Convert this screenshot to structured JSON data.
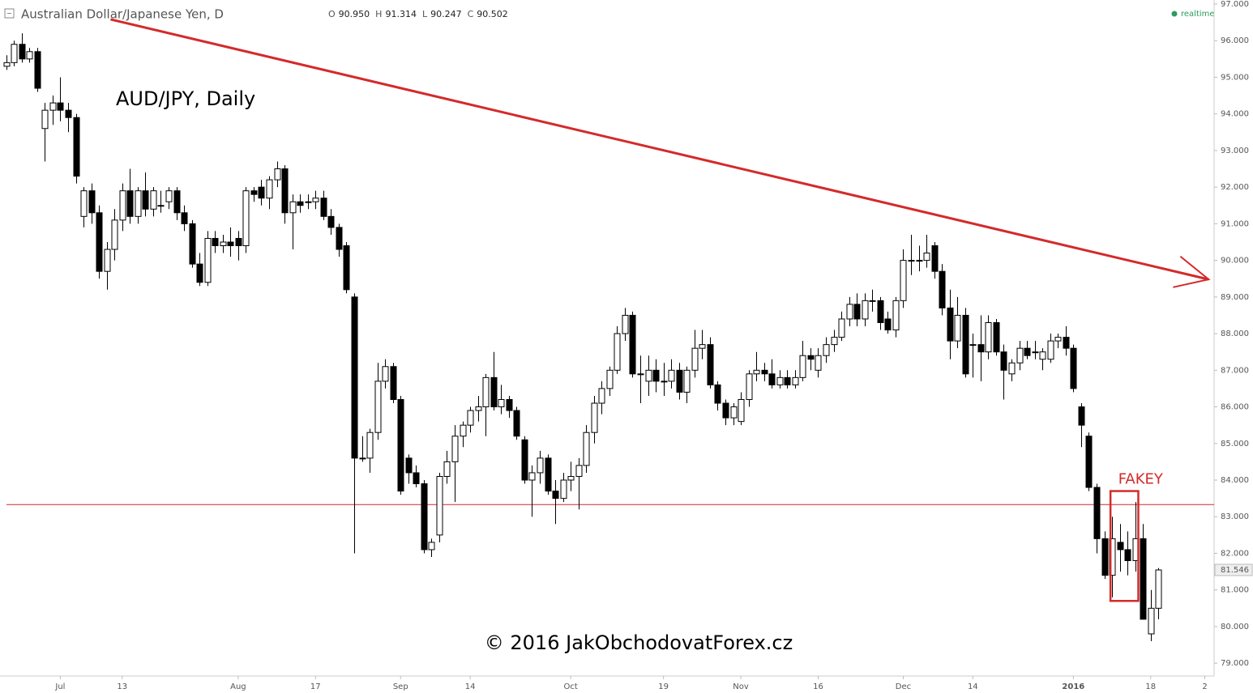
{
  "chart_data": {
    "type": "candlestick",
    "title": "Australian Dollar/Japanese Yen, D",
    "ohlc_legend": [
      {
        "label": "O",
        "value": "90.950"
      },
      {
        "label": "H",
        "value": "91.314"
      },
      {
        "label": "L",
        "value": "90.247"
      },
      {
        "label": "C",
        "value": "90.502"
      }
    ],
    "status": "realtime",
    "annotation": "AUD/JPY, Daily",
    "copyright": "© 2016 JakObchodovatForex.cz",
    "up_color": "#ffffff",
    "down_color": "#000000",
    "line_color": "#d42a2a",
    "ylim": [
      78.65,
      97.11
    ],
    "xlim": [
      -0.8,
      156.2
    ],
    "yticks": [
      {
        "value": 79,
        "label": "79.000"
      },
      {
        "value": 80,
        "label": "80.000"
      },
      {
        "value": 81,
        "label": "81.000"
      },
      {
        "value": 82,
        "label": "82.000"
      },
      {
        "value": 83,
        "label": "83.000"
      },
      {
        "value": 84,
        "label": "84.000"
      },
      {
        "value": 85,
        "label": "85.000"
      },
      {
        "value": 86,
        "label": "86.000"
      },
      {
        "value": 87,
        "label": "87.000"
      },
      {
        "value": 88,
        "label": "88.000"
      },
      {
        "value": 89,
        "label": "89.000"
      },
      {
        "value": 90,
        "label": "90.000"
      },
      {
        "value": 91,
        "label": "91.000"
      },
      {
        "value": 92,
        "label": "92.000"
      },
      {
        "value": 93,
        "label": "93.000"
      },
      {
        "value": 94,
        "label": "94.000"
      },
      {
        "value": 95,
        "label": "95.000"
      },
      {
        "value": 96,
        "label": "96.000"
      },
      {
        "value": 97,
        "label": "97.000"
      }
    ],
    "xticks": [
      {
        "value": 7,
        "label": "Jul"
      },
      {
        "value": 15,
        "label": "13"
      },
      {
        "value": 30,
        "label": "Aug"
      },
      {
        "value": 40,
        "label": "17"
      },
      {
        "value": 51,
        "label": "Sep"
      },
      {
        "value": 60,
        "label": "14"
      },
      {
        "value": 73,
        "label": "Oct"
      },
      {
        "value": 85,
        "label": "19"
      },
      {
        "value": 95,
        "label": "Nov"
      },
      {
        "value": 105,
        "label": "16"
      },
      {
        "value": 116,
        "label": "Dec"
      },
      {
        "value": 125,
        "label": "14"
      },
      {
        "value": 138,
        "label": "2016"
      },
      {
        "value": 148,
        "label": "18"
      },
      {
        "value": 155,
        "label": "2"
      }
    ],
    "last_price": {
      "value": 81.546,
      "label": "81.546"
    },
    "support_level": 83.33,
    "trendline": [
      {
        "x": 13.5,
        "y": 96.58
      },
      {
        "x": 155.5,
        "y": 89.48
      }
    ],
    "fakey_box": {
      "label": "FAKEY",
      "x": [
        142.8,
        146.4
      ],
      "y": [
        80.7,
        83.7
      ]
    },
    "ohlc": [
      [
        95.3,
        95.6,
        95.2,
        95.4
      ],
      [
        95.4,
        96.0,
        95.3,
        95.9
      ],
      [
        95.9,
        96.2,
        95.4,
        95.5
      ],
      [
        95.5,
        95.8,
        95.4,
        95.7
      ],
      [
        95.7,
        95.8,
        94.6,
        94.7
      ],
      [
        93.6,
        94.3,
        92.7,
        94.1
      ],
      [
        94.1,
        94.5,
        93.7,
        94.3
      ],
      [
        94.3,
        95.0,
        93.8,
        94.1
      ],
      [
        94.1,
        94.3,
        93.5,
        93.9
      ],
      [
        93.9,
        94.0,
        92.1,
        92.3
      ],
      [
        91.2,
        92.0,
        90.9,
        91.9
      ],
      [
        91.9,
        92.1,
        91.0,
        91.3
      ],
      [
        91.3,
        91.5,
        89.5,
        89.7
      ],
      [
        89.7,
        90.5,
        89.2,
        90.3
      ],
      [
        90.3,
        91.4,
        90.0,
        91.1
      ],
      [
        91.1,
        92.1,
        90.8,
        91.9
      ],
      [
        91.9,
        92.5,
        91.0,
        91.2
      ],
      [
        91.2,
        92.0,
        91.0,
        91.9
      ],
      [
        91.9,
        92.4,
        91.2,
        91.4
      ],
      [
        91.4,
        92.0,
        91.2,
        91.9
      ],
      [
        91.5,
        91.9,
        91.3,
        91.5
      ],
      [
        91.6,
        92.0,
        91.4,
        91.9
      ],
      [
        91.9,
        92.0,
        91.1,
        91.3
      ],
      [
        91.3,
        91.5,
        90.8,
        91.0
      ],
      [
        91.0,
        91.1,
        89.8,
        89.9
      ],
      [
        89.9,
        90.2,
        89.3,
        89.4
      ],
      [
        89.4,
        90.8,
        89.3,
        90.6
      ],
      [
        90.6,
        90.8,
        90.2,
        90.4
      ],
      [
        90.4,
        90.7,
        90.2,
        90.5
      ],
      [
        90.5,
        90.9,
        90.1,
        90.4
      ],
      [
        90.6,
        90.8,
        90.0,
        90.4
      ],
      [
        90.4,
        92.0,
        90.2,
        91.9
      ],
      [
        91.9,
        92.0,
        91.6,
        91.8
      ],
      [
        92.0,
        92.2,
        91.5,
        91.7
      ],
      [
        91.7,
        92.3,
        91.4,
        92.2
      ],
      [
        92.2,
        92.7,
        92.0,
        92.5
      ],
      [
        92.5,
        92.6,
        91.0,
        91.3
      ],
      [
        91.3,
        91.8,
        90.3,
        91.6
      ],
      [
        91.6,
        91.8,
        91.3,
        91.5
      ],
      [
        91.6,
        91.8,
        91.4,
        91.6
      ],
      [
        91.6,
        91.9,
        91.4,
        91.7
      ],
      [
        91.7,
        91.9,
        91.1,
        91.2
      ],
      [
        91.2,
        91.4,
        90.7,
        90.9
      ],
      [
        90.9,
        91.0,
        90.1,
        90.3
      ],
      [
        90.4,
        90.5,
        89.1,
        89.2
      ],
      [
        89.0,
        89.1,
        82.0,
        84.6
      ],
      [
        84.6,
        85.2,
        84.5,
        84.6
      ],
      [
        84.6,
        85.4,
        84.2,
        85.3
      ],
      [
        85.3,
        87.2,
        85.1,
        86.7
      ],
      [
        86.7,
        87.3,
        86.5,
        87.1
      ],
      [
        87.1,
        87.2,
        86.1,
        86.2
      ],
      [
        86.2,
        86.3,
        83.6,
        83.7
      ],
      [
        84.6,
        84.7,
        83.9,
        84.2
      ],
      [
        84.2,
        84.4,
        83.8,
        83.9
      ],
      [
        83.9,
        84.0,
        82.0,
        82.1
      ],
      [
        82.1,
        82.4,
        81.9,
        82.3
      ],
      [
        82.5,
        84.2,
        82.3,
        84.1
      ],
      [
        84.1,
        84.8,
        83.9,
        84.5
      ],
      [
        84.5,
        85.5,
        83.4,
        85.2
      ],
      [
        85.2,
        85.6,
        84.9,
        85.5
      ],
      [
        85.5,
        86.0,
        85.3,
        85.9
      ],
      [
        85.9,
        86.3,
        85.6,
        86.0
      ],
      [
        86.0,
        86.9,
        85.2,
        86.8
      ],
      [
        86.8,
        87.5,
        85.9,
        86.0
      ],
      [
        86.0,
        86.6,
        85.8,
        86.2
      ],
      [
        86.2,
        86.3,
        85.7,
        85.9
      ],
      [
        85.9,
        86.0,
        85.1,
        85.2
      ],
      [
        85.1,
        85.2,
        83.9,
        84.0
      ],
      [
        84.0,
        84.4,
        83.0,
        84.2
      ],
      [
        84.2,
        84.8,
        83.9,
        84.6
      ],
      [
        84.6,
        84.7,
        83.6,
        83.7
      ],
      [
        83.7,
        84.0,
        82.8,
        83.5
      ],
      [
        83.5,
        84.2,
        83.4,
        84.0
      ],
      [
        84.0,
        84.5,
        83.7,
        84.1
      ],
      [
        84.1,
        84.6,
        83.2,
        84.4
      ],
      [
        84.4,
        85.5,
        84.2,
        85.3
      ],
      [
        85.3,
        86.3,
        85.0,
        86.1
      ],
      [
        86.1,
        86.7,
        85.8,
        86.5
      ],
      [
        86.5,
        87.1,
        86.3,
        87.0
      ],
      [
        87.0,
        88.2,
        86.9,
        88.0
      ],
      [
        88.0,
        88.7,
        87.8,
        88.5
      ],
      [
        88.5,
        88.6,
        86.8,
        86.9
      ],
      [
        86.9,
        87.4,
        86.1,
        86.9
      ],
      [
        86.7,
        87.4,
        86.3,
        87.0
      ],
      [
        87.0,
        87.3,
        86.4,
        86.7
      ],
      [
        86.7,
        87.2,
        86.3,
        86.7
      ],
      [
        86.7,
        87.3,
        86.5,
        87.0
      ],
      [
        87.0,
        87.2,
        86.2,
        86.4
      ],
      [
        86.4,
        87.1,
        86.1,
        87.0
      ],
      [
        87.0,
        88.1,
        86.8,
        87.6
      ],
      [
        87.6,
        88.1,
        87.3,
        87.7
      ],
      [
        87.7,
        87.9,
        86.5,
        86.6
      ],
      [
        86.6,
        86.7,
        85.9,
        86.1
      ],
      [
        86.1,
        86.2,
        85.5,
        85.7
      ],
      [
        85.7,
        86.1,
        85.5,
        86.0
      ],
      [
        85.6,
        86.4,
        85.5,
        86.2
      ],
      [
        86.2,
        87.0,
        86.0,
        86.9
      ],
      [
        86.9,
        87.5,
        86.7,
        87.0
      ],
      [
        87.0,
        87.2,
        86.7,
        86.9
      ],
      [
        86.9,
        87.3,
        86.5,
        86.6
      ],
      [
        86.6,
        87.0,
        86.5,
        86.8
      ],
      [
        86.8,
        87.0,
        86.5,
        86.6
      ],
      [
        86.6,
        87.0,
        86.5,
        86.8
      ],
      [
        86.8,
        87.8,
        86.7,
        87.4
      ],
      [
        87.4,
        87.6,
        87.0,
        87.3
      ],
      [
        87.0,
        87.6,
        86.8,
        87.4
      ],
      [
        87.4,
        87.9,
        87.2,
        87.7
      ],
      [
        87.7,
        88.1,
        87.5,
        87.9
      ],
      [
        87.9,
        88.6,
        87.8,
        88.4
      ],
      [
        88.4,
        89.0,
        88.2,
        88.8
      ],
      [
        88.8,
        89.1,
        88.2,
        88.4
      ],
      [
        88.4,
        89.1,
        88.2,
        88.9
      ],
      [
        88.9,
        89.2,
        88.6,
        88.9
      ],
      [
        88.9,
        89.0,
        88.1,
        88.3
      ],
      [
        88.4,
        88.6,
        88.0,
        88.1
      ],
      [
        88.1,
        89.0,
        87.9,
        88.9
      ],
      [
        88.9,
        90.3,
        88.7,
        90.0
      ],
      [
        90.0,
        90.7,
        89.6,
        90.0
      ],
      [
        90.0,
        90.4,
        89.7,
        90.0
      ],
      [
        90.0,
        90.7,
        89.8,
        90.2
      ],
      [
        90.4,
        90.5,
        89.5,
        89.7
      ],
      [
        89.7,
        89.9,
        88.5,
        88.7
      ],
      [
        88.7,
        89.2,
        87.3,
        87.8
      ],
      [
        87.8,
        89.0,
        87.6,
        88.5
      ],
      [
        88.5,
        88.7,
        86.8,
        86.9
      ],
      [
        87.7,
        88.0,
        86.8,
        87.7
      ],
      [
        87.7,
        88.5,
        86.7,
        87.5
      ],
      [
        87.5,
        88.5,
        87.3,
        88.3
      ],
      [
        88.3,
        88.4,
        87.4,
        87.5
      ],
      [
        87.5,
        87.7,
        86.2,
        87.0
      ],
      [
        86.9,
        87.3,
        86.7,
        87.2
      ],
      [
        87.2,
        87.8,
        87.0,
        87.6
      ],
      [
        87.6,
        87.8,
        87.3,
        87.4
      ],
      [
        87.5,
        87.8,
        87.3,
        87.5
      ],
      [
        87.3,
        87.6,
        87.0,
        87.5
      ],
      [
        87.3,
        88.0,
        87.2,
        87.8
      ],
      [
        87.8,
        88.0,
        87.6,
        87.9
      ],
      [
        87.9,
        88.2,
        87.4,
        87.6
      ],
      [
        87.6,
        87.7,
        86.4,
        86.5
      ],
      [
        86.0,
        86.1,
        84.9,
        85.5
      ],
      [
        85.2,
        85.3,
        83.7,
        83.8
      ],
      [
        83.8,
        83.9,
        82.0,
        82.4
      ],
      [
        82.4,
        82.6,
        81.3,
        81.4
      ],
      [
        81.4,
        83.0,
        80.8,
        82.4
      ],
      [
        82.3,
        82.8,
        81.5,
        82.1
      ],
      [
        82.1,
        82.6,
        81.4,
        81.8
      ],
      [
        81.8,
        83.4,
        81.5,
        82.4
      ],
      [
        82.4,
        82.8,
        80.2,
        80.2
      ],
      [
        79.8,
        81.0,
        79.6,
        80.5
      ],
      [
        80.5,
        81.6,
        80.2,
        81.546
      ]
    ]
  }
}
